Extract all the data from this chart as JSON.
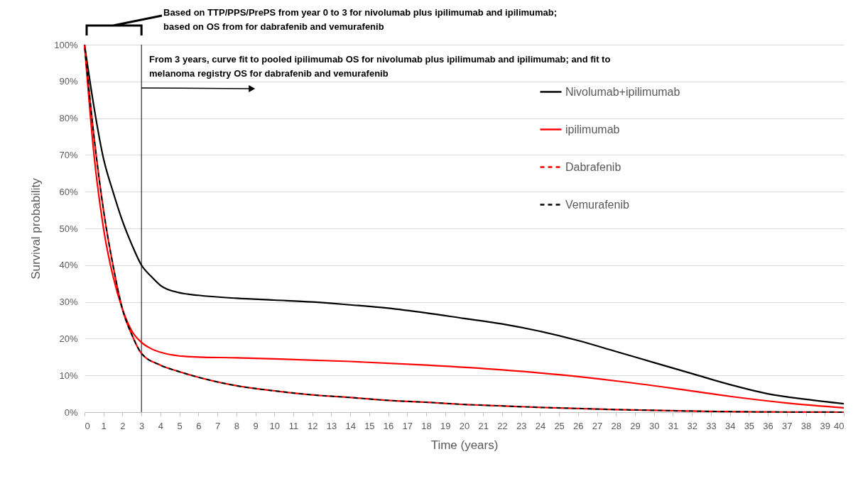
{
  "chart_data": {
    "type": "line",
    "xlabel": "Time (years)",
    "ylabel": "Survival probability",
    "annotations": [
      "Based on TTP/PPS/PrePS from year 0 to 3 for nivolumab plus ipilimumab and ipilimumab; based on OS from for dabrafenib and vemurafenib",
      "From 3 years, curve fit to pooled ipilimumab OS for nivolumab plus ipilimumab and ipilimumab; and fit to melanoma registry OS for dabrafenib and vemurafenib"
    ],
    "ref_lines": [
      {
        "axis": "x",
        "value": 3,
        "color": "#000000"
      }
    ],
    "series": [
      {
        "name": "Nivolumab+ipilimumab",
        "color": "#000000",
        "line_style": "solid",
        "x": [
          0,
          0.5,
          1,
          1.5,
          2,
          2.5,
          3,
          3.5,
          4,
          5,
          6,
          8,
          10,
          12,
          14,
          16,
          18,
          20,
          22,
          24,
          26,
          28,
          30,
          32,
          34,
          36,
          38,
          40
        ],
        "values": [
          100,
          83,
          69,
          60,
          52,
          45.5,
          40,
          37,
          34.5,
          32.5,
          31.8,
          31,
          30.5,
          30,
          29.2,
          28.3,
          27,
          25.5,
          24,
          22,
          19.5,
          16.5,
          13.5,
          10.5,
          7.5,
          5,
          3.5,
          2.3
        ]
      },
      {
        "name": "ipilimumab",
        "color": "#ff0000",
        "line_style": "solid",
        "x": [
          0,
          0.5,
          1,
          1.5,
          2,
          2.5,
          3,
          3.5,
          4,
          5,
          6,
          8,
          10,
          14,
          18,
          22,
          25,
          28,
          31,
          34,
          37,
          40
        ],
        "values": [
          100,
          70,
          50,
          37,
          28,
          22,
          19,
          17.3,
          16.3,
          15.3,
          15,
          14.8,
          14.5,
          13.8,
          12.8,
          11.5,
          10.2,
          8.5,
          6.5,
          4.3,
          2.5,
          1.2
        ]
      },
      {
        "name": "Dabrafenib",
        "color": "#ff0000",
        "line_style": "dashed",
        "x": [
          0,
          0.5,
          1,
          1.5,
          2,
          2.5,
          3,
          4,
          5,
          6,
          8,
          10,
          12,
          14,
          16,
          18,
          20,
          22,
          24,
          26,
          28,
          30,
          32,
          35,
          40
        ],
        "values": [
          100,
          75,
          55,
          40,
          28,
          21,
          16,
          12.8,
          11,
          9.5,
          7.2,
          5.8,
          4.7,
          4,
          3.2,
          2.7,
          2.1,
          1.7,
          1.3,
          1,
          0.7,
          0.5,
          0.3,
          0.1,
          0
        ]
      },
      {
        "name": "Vemurafenib",
        "color": "#000000",
        "line_style": "dashed",
        "x": [
          0,
          0.5,
          1,
          1.5,
          2,
          2.5,
          3,
          4,
          5,
          6,
          8,
          10,
          12,
          14,
          16,
          18,
          20,
          22,
          24,
          26,
          28,
          30,
          32,
          35,
          40
        ],
        "values": [
          100,
          75,
          55,
          40,
          28,
          21,
          16,
          12.8,
          11,
          9.5,
          7.2,
          5.8,
          4.7,
          4,
          3.2,
          2.7,
          2.1,
          1.7,
          1.3,
          1,
          0.7,
          0.5,
          0.3,
          0.1,
          0
        ]
      }
    ],
    "xlim": [
      0,
      40
    ],
    "xticks": [
      0,
      1,
      2,
      3,
      4,
      5,
      6,
      7,
      8,
      9,
      10,
      11,
      12,
      13,
      14,
      15,
      16,
      17,
      18,
      19,
      20,
      21,
      22,
      23,
      24,
      25,
      26,
      27,
      28,
      29,
      30,
      31,
      32,
      33,
      34,
      35,
      36,
      37,
      38,
      39,
      40
    ],
    "ylim": [
      0,
      100
    ],
    "yticks": [
      {
        "value": 0,
        "label": "0%"
      },
      {
        "value": 10,
        "label": "10%"
      },
      {
        "value": 20,
        "label": "20%"
      },
      {
        "value": 30,
        "label": "30%"
      },
      {
        "value": 40,
        "label": "40%"
      },
      {
        "value": 50,
        "label": "50%"
      },
      {
        "value": 60,
        "label": "60%"
      },
      {
        "value": 70,
        "label": "70%"
      },
      {
        "value": 80,
        "label": "80%"
      },
      {
        "value": 90,
        "label": "90%"
      },
      {
        "value": 100,
        "label": "100%"
      }
    ],
    "grid": "y",
    "legend": "top right"
  }
}
